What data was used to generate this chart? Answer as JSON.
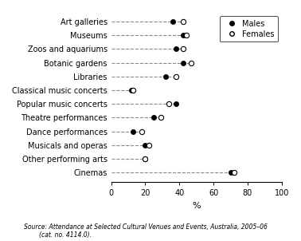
{
  "categories": [
    "Cinemas",
    "Other performing arts",
    "Musicals and operas",
    "Dance performances",
    "Theatre performances",
    "Popular music concerts",
    "Classical music concerts",
    "Libraries",
    "Botanic gardens",
    "Zoos and aquariums",
    "Museums",
    "Art galleries"
  ],
  "males": [
    70,
    20,
    20,
    13,
    25,
    38,
    12,
    32,
    42,
    38,
    42,
    36
  ],
  "females": [
    72,
    20,
    22,
    18,
    29,
    34,
    13,
    38,
    47,
    42,
    44,
    42
  ],
  "xlim": [
    0,
    100
  ],
  "xticks": [
    0,
    20,
    40,
    60,
    80,
    100
  ],
  "xlabel": "%",
  "male_color": "#000000",
  "female_color": "#000000",
  "line_color": "#888888",
  "source_text": "Source: Attendance at Selected Cultural Venues and Events, Australia, 2005–06\n        (cat. no. 4114.0).",
  "bg_color": "#ffffff"
}
